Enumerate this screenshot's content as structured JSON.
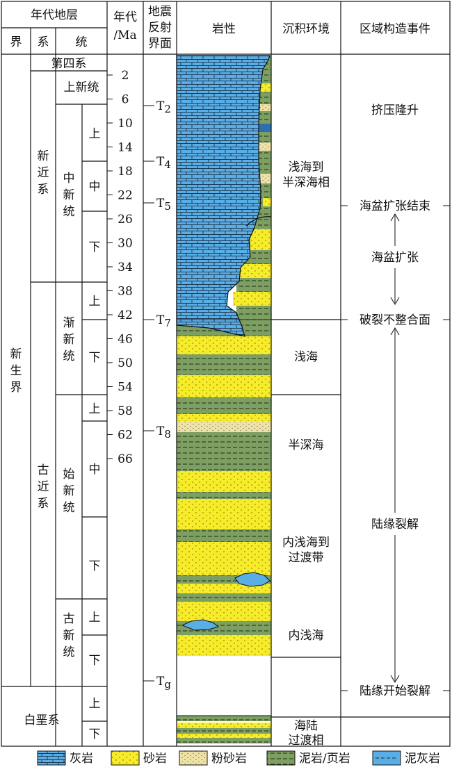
{
  "header": {
    "strat_group": "年代地层",
    "jie": "界",
    "xi": "系",
    "tong": "统",
    "age_l1": "年代",
    "age_l2": "/Ma",
    "seis_l1": "地震",
    "seis_l2": "反射",
    "seis_l3": "界面",
    "lith": "岩性",
    "env": "沉积环境",
    "tect": "区域构造事件"
  },
  "erathem": {
    "cenozoic": [
      "新",
      "生",
      "界"
    ]
  },
  "system": {
    "quaternary": "第四系",
    "neogene": [
      "新",
      "近",
      "系"
    ],
    "paleogene": [
      "古",
      "近",
      "系"
    ],
    "cretaceous": "白垩系"
  },
  "series": {
    "pliocene": "上新统",
    "miocene": [
      "中",
      "新",
      "统"
    ],
    "oligocene": [
      "渐",
      "新",
      "统"
    ],
    "eocene": [
      "始",
      "新",
      "统"
    ],
    "paleocene": [
      "古",
      "新",
      "统"
    ]
  },
  "subseries": {
    "upper": "上",
    "middle": "中",
    "lower": "下",
    "lower_alt": "T"
  },
  "age_ticks": [
    "2",
    "6",
    "10",
    "14",
    "18",
    "22",
    "26",
    "30",
    "34",
    "38",
    "42",
    "46",
    "50",
    "54",
    "58",
    "62",
    "66"
  ],
  "seismic": [
    {
      "base": "T",
      "sub": "2"
    },
    {
      "base": "T",
      "sub": "4"
    },
    {
      "base": "T",
      "sub": "5"
    },
    {
      "base": "T",
      "sub": "7"
    },
    {
      "base": "T",
      "sub": "8"
    },
    {
      "base": "T",
      "sub": "g"
    }
  ],
  "environment": {
    "shallow_semi_deep_l1": "浅海到",
    "shallow_semi_deep_l2": "半深海相",
    "shallow": "浅海",
    "semi_deep": "半深海",
    "inner_transition_l1": "内浅海到",
    "inner_transition_l2": "过渡带",
    "inner_shallow": "内浅海",
    "marine_continental_l1": "海陆",
    "marine_continental_l2": "过渡相"
  },
  "tectonic": {
    "compression": "挤压隆升",
    "basin_end": "海盆扩张结束",
    "basin_expansion": "海盆扩张",
    "breakup": "破裂不整合面",
    "rifting": "陆缘裂解",
    "rift_start": "陆缘开始裂解"
  },
  "legend": {
    "limestone": "灰岩",
    "sandstone": "砂岩",
    "siltstone": "粉砂岩",
    "mudstone": "泥岩/页岩",
    "marl": "泥灰岩"
  },
  "colors": {
    "limestone": "#5aaee6",
    "sandstone": "#f7ec2a",
    "siltstone": "#efe2a6",
    "mudstone": "#7d9f62",
    "line": "#111111"
  }
}
